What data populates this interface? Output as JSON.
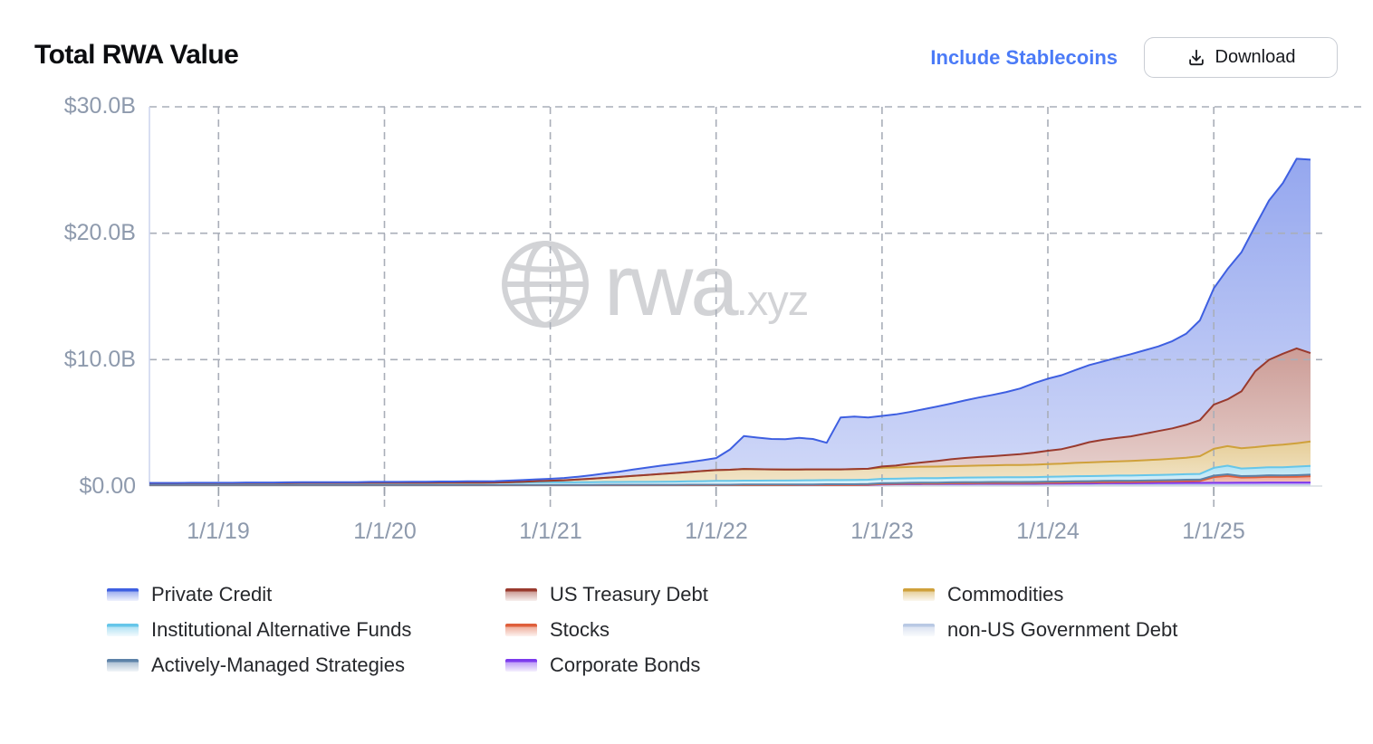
{
  "header": {
    "title": "Total RWA Value",
    "stablecoins_link": "Include Stablecoins",
    "download_label": "Download"
  },
  "axes": {
    "y_labels": [
      "$30.0B",
      "$20.0B",
      "$10.0B",
      "$0.00"
    ],
    "x_labels": [
      "1/1/19",
      "1/1/20",
      "1/1/21",
      "1/1/22",
      "1/1/23",
      "1/1/24",
      "1/1/25"
    ]
  },
  "watermark": {
    "brand": "rwa",
    "suffix": ".xyz"
  },
  "legend": {
    "items": [
      {
        "label": "Private Credit",
        "color": "#3e5fe1"
      },
      {
        "label": "Institutional Alternative Funds",
        "color": "#66c6e9"
      },
      {
        "label": "Actively-Managed Strategies",
        "color": "#5d82a8"
      },
      {
        "label": "US Treasury Debt",
        "color": "#993a2e"
      },
      {
        "label": "Stocks",
        "color": "#df5f3b"
      },
      {
        "label": "Corporate Bonds",
        "color": "#7c3aed"
      },
      {
        "label": "Commodities",
        "color": "#cfa13b"
      },
      {
        "label": "non-US Government Debt",
        "color": "#b9c9e4"
      }
    ]
  },
  "chart_data": {
    "type": "area",
    "stacked": true,
    "title": "Total RWA Value",
    "y_unit": "$B",
    "ylim": [
      0,
      30
    ],
    "y_gridlines": [
      10,
      20,
      30
    ],
    "grid": "dashed",
    "legend_position": "bottom",
    "x": [
      "2018-08",
      "2018-09",
      "2018-10",
      "2018-11",
      "2018-12",
      "2019-01",
      "2019-02",
      "2019-03",
      "2019-04",
      "2019-05",
      "2019-06",
      "2019-07",
      "2019-08",
      "2019-09",
      "2019-10",
      "2019-11",
      "2019-12",
      "2020-01",
      "2020-02",
      "2020-03",
      "2020-04",
      "2020-05",
      "2020-06",
      "2020-07",
      "2020-08",
      "2020-09",
      "2020-10",
      "2020-11",
      "2020-12",
      "2021-01",
      "2021-02",
      "2021-03",
      "2021-04",
      "2021-05",
      "2021-06",
      "2021-07",
      "2021-08",
      "2021-09",
      "2021-10",
      "2021-11",
      "2021-12",
      "2022-01",
      "2022-02",
      "2022-03",
      "2022-04",
      "2022-05",
      "2022-06",
      "2022-07",
      "2022-08",
      "2022-09",
      "2022-10",
      "2022-11",
      "2022-12",
      "2023-01",
      "2023-02",
      "2023-03",
      "2023-04",
      "2023-05",
      "2023-06",
      "2023-07",
      "2023-08",
      "2023-09",
      "2023-10",
      "2023-11",
      "2023-12",
      "2024-01",
      "2024-02",
      "2024-03",
      "2024-04",
      "2024-05",
      "2024-06",
      "2024-07",
      "2024-08",
      "2024-09",
      "2024-10",
      "2024-11",
      "2024-12",
      "2025-01",
      "2025-02",
      "2025-03",
      "2025-04",
      "2025-05",
      "2025-06",
      "2025-07",
      "2025-08"
    ],
    "series": [
      {
        "name": "non-US Government Debt",
        "color": "#b9c9e4",
        "stroke_width": 1.25,
        "fill_opacity": [
          0.8,
          0.55
        ],
        "values": [
          0.07,
          0.07,
          0.07,
          0.07,
          0.07,
          0.07,
          0.07,
          0.07,
          0.07,
          0.07,
          0.07,
          0.07,
          0.07,
          0.07,
          0.07,
          0.07,
          0.07,
          0.07,
          0.07,
          0.07,
          0.07,
          0.07,
          0.07,
          0.07,
          0.07,
          0.07,
          0.07,
          0.07,
          0.07,
          0.07,
          0.07,
          0.07,
          0.07,
          0.07,
          0.07,
          0.07,
          0.07,
          0.07,
          0.07,
          0.07,
          0.07,
          0.07,
          0.07,
          0.07,
          0.07,
          0.07,
          0.07,
          0.08,
          0.08,
          0.08,
          0.08,
          0.08,
          0.08,
          0.08,
          0.08,
          0.08,
          0.08,
          0.08,
          0.08,
          0.08,
          0.08,
          0.08,
          0.08,
          0.08,
          0.08,
          0.08,
          0.08,
          0.09,
          0.09,
          0.09,
          0.09,
          0.09,
          0.09,
          0.1,
          0.1,
          0.1,
          0.1,
          0.1,
          0.1,
          0.1,
          0.1,
          0.1,
          0.1,
          0.1,
          0.1
        ]
      },
      {
        "name": "Corporate Bonds",
        "color": "#7c3aed",
        "stroke_width": 2,
        "fill_opacity": [
          0.55,
          0.3
        ],
        "values": [
          0,
          0,
          0,
          0,
          0,
          0,
          0,
          0,
          0,
          0,
          0,
          0,
          0,
          0,
          0,
          0,
          0,
          0,
          0,
          0,
          0,
          0,
          0,
          0,
          0,
          0,
          0,
          0,
          0,
          0,
          0,
          0,
          0,
          0,
          0,
          0,
          0,
          0,
          0,
          0,
          0,
          0,
          0,
          0,
          0,
          0,
          0,
          0,
          0,
          0,
          0,
          0,
          0,
          0.05,
          0.06,
          0.07,
          0.08,
          0.08,
          0.09,
          0.09,
          0.1,
          0.1,
          0.1,
          0.1,
          0.1,
          0.11,
          0.11,
          0.12,
          0.12,
          0.13,
          0.13,
          0.13,
          0.14,
          0.14,
          0.14,
          0.15,
          0.15,
          0.16,
          0.16,
          0.17,
          0.17,
          0.18,
          0.18,
          0.18,
          0.18
        ]
      },
      {
        "name": "Stocks",
        "color": "#df5f3b",
        "stroke_width": 2,
        "fill_opacity": [
          0.55,
          0.28
        ],
        "values": [
          0,
          0,
          0,
          0,
          0,
          0,
          0,
          0,
          0,
          0,
          0,
          0,
          0,
          0,
          0,
          0,
          0,
          0,
          0,
          0,
          0,
          0,
          0,
          0,
          0,
          0,
          0,
          0,
          0,
          0,
          0,
          0,
          0,
          0,
          0,
          0,
          0,
          0,
          0,
          0,
          0,
          0,
          0,
          0,
          0,
          0,
          0,
          0,
          0,
          0,
          0,
          0,
          0.02,
          0.03,
          0.03,
          0.04,
          0.04,
          0.04,
          0.05,
          0.05,
          0.05,
          0.06,
          0.06,
          0.06,
          0.07,
          0.07,
          0.08,
          0.08,
          0.09,
          0.09,
          0.1,
          0.1,
          0.11,
          0.12,
          0.13,
          0.14,
          0.15,
          0.45,
          0.55,
          0.4,
          0.42,
          0.45,
          0.44,
          0.46,
          0.5
        ]
      },
      {
        "name": "Actively-Managed Strategies",
        "color": "#5d82a8",
        "stroke_width": 2,
        "fill_opacity": [
          0.55,
          0.3
        ],
        "values": [
          0.02,
          0.02,
          0.02,
          0.02,
          0.02,
          0.02,
          0.02,
          0.02,
          0.02,
          0.02,
          0.02,
          0.02,
          0.02,
          0.02,
          0.02,
          0.02,
          0.02,
          0.02,
          0.02,
          0.02,
          0.02,
          0.02,
          0.02,
          0.02,
          0.02,
          0.02,
          0.02,
          0.02,
          0.02,
          0.02,
          0.02,
          0.02,
          0.02,
          0.03,
          0.03,
          0.03,
          0.03,
          0.03,
          0.03,
          0.04,
          0.04,
          0.04,
          0.04,
          0.05,
          0.05,
          0.05,
          0.05,
          0.05,
          0.05,
          0.06,
          0.06,
          0.06,
          0.06,
          0.06,
          0.06,
          0.07,
          0.07,
          0.07,
          0.07,
          0.08,
          0.08,
          0.08,
          0.08,
          0.08,
          0.08,
          0.09,
          0.09,
          0.09,
          0.09,
          0.1,
          0.1,
          0.1,
          0.1,
          0.1,
          0.1,
          0.11,
          0.11,
          0.11,
          0.12,
          0.12,
          0.12,
          0.12,
          0.12,
          0.12,
          0.12
        ]
      },
      {
        "name": "Institutional Alternative Funds",
        "color": "#66c6e9",
        "stroke_width": 2,
        "fill_opacity": [
          0.5,
          0.22
        ],
        "values": [
          0.13,
          0.13,
          0.13,
          0.14,
          0.14,
          0.14,
          0.14,
          0.15,
          0.15,
          0.15,
          0.15,
          0.16,
          0.16,
          0.16,
          0.16,
          0.16,
          0.17,
          0.17,
          0.17,
          0.17,
          0.17,
          0.18,
          0.18,
          0.18,
          0.18,
          0.19,
          0.19,
          0.19,
          0.2,
          0.2,
          0.2,
          0.21,
          0.21,
          0.22,
          0.22,
          0.23,
          0.23,
          0.24,
          0.25,
          0.26,
          0.28,
          0.3,
          0.3,
          0.31,
          0.31,
          0.32,
          0.32,
          0.32,
          0.33,
          0.33,
          0.33,
          0.34,
          0.34,
          0.35,
          0.35,
          0.35,
          0.36,
          0.36,
          0.36,
          0.37,
          0.37,
          0.37,
          0.38,
          0.38,
          0.38,
          0.39,
          0.39,
          0.4,
          0.4,
          0.4,
          0.41,
          0.41,
          0.42,
          0.42,
          0.43,
          0.44,
          0.45,
          0.62,
          0.68,
          0.6,
          0.62,
          0.64,
          0.65,
          0.68,
          0.7
        ]
      },
      {
        "name": "Commodities",
        "color": "#cfa13b",
        "stroke_width": 2,
        "fill_opacity": [
          0.52,
          0.28
        ],
        "values": [
          0,
          0,
          0,
          0,
          0,
          0,
          0,
          0,
          0,
          0,
          0,
          0,
          0,
          0,
          0,
          0,
          0,
          0,
          0,
          0,
          0,
          0,
          0,
          0,
          0,
          0,
          0.03,
          0.06,
          0.1,
          0.13,
          0.17,
          0.22,
          0.28,
          0.33,
          0.4,
          0.48,
          0.55,
          0.62,
          0.68,
          0.74,
          0.8,
          0.85,
          0.88,
          0.92,
          0.9,
          0.88,
          0.87,
          0.86,
          0.86,
          0.85,
          0.85,
          0.86,
          0.87,
          0.88,
          0.89,
          0.9,
          0.9,
          0.91,
          0.92,
          0.93,
          0.94,
          0.95,
          0.96,
          0.97,
          0.98,
          1.0,
          1.02,
          1.05,
          1.08,
          1.1,
          1.12,
          1.15,
          1.18,
          1.22,
          1.26,
          1.3,
          1.4,
          1.5,
          1.55,
          1.6,
          1.65,
          1.7,
          1.78,
          1.85,
          1.92
        ]
      },
      {
        "name": "US Treasury Debt",
        "color": "#993a2e",
        "stroke_width": 2,
        "fill_opacity": [
          0.5,
          0.22
        ],
        "values": [
          0,
          0,
          0,
          0,
          0,
          0,
          0,
          0,
          0,
          0,
          0,
          0,
          0,
          0,
          0,
          0,
          0,
          0,
          0,
          0,
          0,
          0,
          0,
          0,
          0,
          0,
          0,
          0,
          0,
          0,
          0,
          0,
          0,
          0,
          0,
          0,
          0,
          0,
          0,
          0,
          0,
          0,
          0,
          0,
          0,
          0,
          0,
          0,
          0,
          0,
          0,
          0,
          0,
          0.1,
          0.15,
          0.25,
          0.35,
          0.45,
          0.55,
          0.62,
          0.68,
          0.72,
          0.78,
          0.85,
          0.95,
          1.05,
          1.15,
          1.35,
          1.6,
          1.75,
          1.85,
          1.95,
          2.1,
          2.25,
          2.4,
          2.6,
          2.85,
          3.5,
          3.7,
          4.5,
          6.0,
          6.8,
          7.2,
          7.5,
          7.0
        ]
      },
      {
        "name": "Private Credit",
        "color": "#3e5fe1",
        "stroke_width": 2,
        "fill_opacity": [
          0.55,
          0.24
        ],
        "values": [
          0.02,
          0.02,
          0.02,
          0.03,
          0.03,
          0.03,
          0.03,
          0.04,
          0.04,
          0.04,
          0.05,
          0.05,
          0.05,
          0.06,
          0.06,
          0.06,
          0.07,
          0.07,
          0.07,
          0.08,
          0.08,
          0.09,
          0.09,
          0.1,
          0.1,
          0.11,
          0.12,
          0.13,
          0.14,
          0.15,
          0.18,
          0.22,
          0.28,
          0.35,
          0.42,
          0.5,
          0.58,
          0.65,
          0.72,
          0.78,
          0.85,
          0.95,
          1.6,
          2.6,
          2.5,
          2.4,
          2.4,
          2.5,
          2.4,
          2.1,
          4.1,
          4.15,
          4.05,
          4.0,
          4.05,
          4.1,
          4.2,
          4.3,
          4.4,
          4.55,
          4.7,
          4.85,
          5.0,
          5.2,
          5.5,
          5.7,
          5.85,
          6.0,
          6.1,
          6.2,
          6.35,
          6.5,
          6.6,
          6.7,
          6.9,
          7.2,
          7.9,
          9.2,
          10.3,
          11.0,
          11.5,
          12.6,
          13.5,
          15.0,
          15.3
        ]
      }
    ]
  }
}
